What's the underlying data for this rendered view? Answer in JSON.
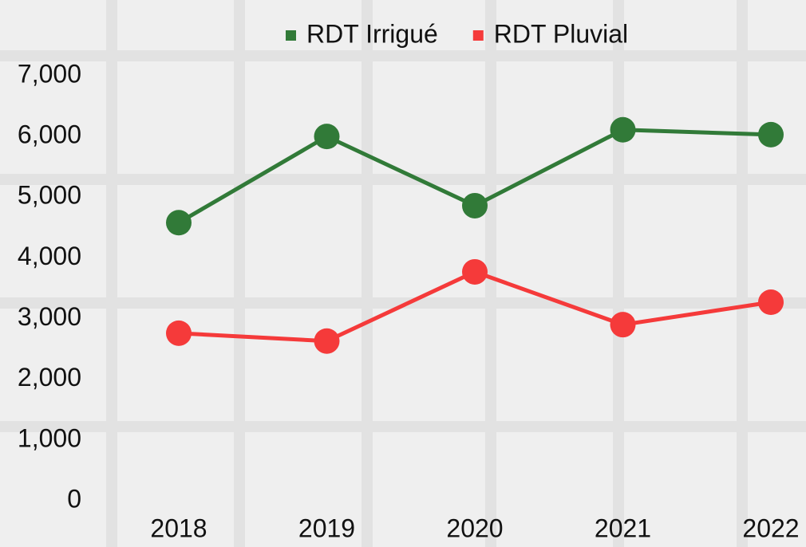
{
  "chart_data": {
    "type": "line",
    "categories": [
      "2018",
      "2019",
      "2020",
      "2021",
      "2022"
    ],
    "series": [
      {
        "name": "RDT Irrigué",
        "color": "#317a38",
        "values": [
          4580,
          6000,
          4860,
          6110,
          6030
        ]
      },
      {
        "name": "RDT Pluvial",
        "color": "#f53a3a",
        "values": [
          2760,
          2630,
          3770,
          2900,
          3270
        ]
      }
    ],
    "ylim": [
      0,
      7000
    ],
    "yticks": [
      0,
      {
        "value": 1000,
        "label": "1,000"
      },
      {
        "value": 2000,
        "label": "2,000"
      },
      {
        "value": 3000,
        "label": "3,000"
      },
      {
        "value": 4000,
        "label": "4,000"
      },
      {
        "value": 5000,
        "label": "5,000"
      },
      {
        "value": 6000,
        "label": "6,000"
      },
      {
        "value": 7000,
        "label": "7,000"
      }
    ],
    "grid": false,
    "legend": "top"
  }
}
